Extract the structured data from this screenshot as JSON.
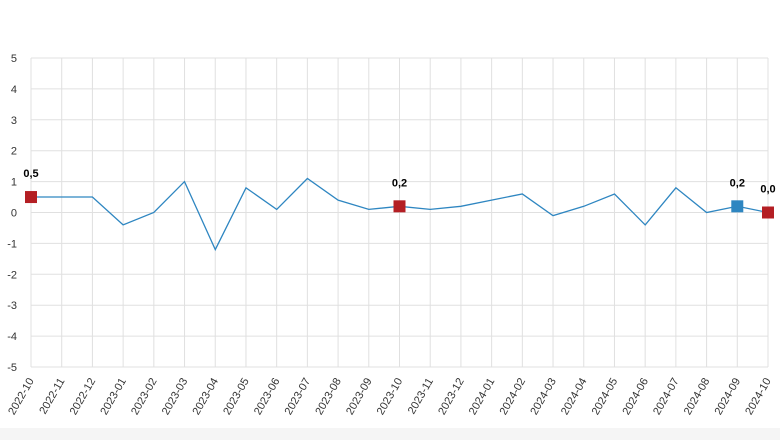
{
  "chart_data": {
    "type": "line",
    "title": "",
    "xlabel": "",
    "ylabel": "",
    "ylim": [
      -5,
      5
    ],
    "yticks": [
      5,
      4,
      3,
      2,
      1,
      0,
      -1,
      -2,
      -3,
      -4,
      -5
    ],
    "grid": true,
    "categories": [
      "2022-10",
      "2022-11",
      "2022-12",
      "2023-01",
      "2023-02",
      "2023-03",
      "2023-04",
      "2023-05",
      "2023-06",
      "2023-07",
      "2023-08",
      "2023-09",
      "2023-10",
      "2023-11",
      "2023-12",
      "2024-01",
      "2024-02",
      "2024-03",
      "2024-04",
      "2024-05",
      "2024-06",
      "2024-07",
      "2024-08",
      "2024-09",
      "2024-10"
    ],
    "series": [
      {
        "values": [
          0.5,
          0.5,
          0.5,
          -0.4,
          0.0,
          1.0,
          -1.2,
          0.8,
          0.1,
          1.1,
          0.4,
          0.1,
          0.2,
          0.1,
          0.2,
          0.4,
          0.6,
          -0.1,
          0.2,
          0.6,
          -0.4,
          0.8,
          0.0,
          0.2,
          0.0
        ],
        "color": "#2e86c1"
      }
    ],
    "markers": [
      {
        "index": 0,
        "label": "0,5",
        "color": "#b41f24"
      },
      {
        "index": 12,
        "label": "0,2",
        "color": "#b41f24"
      },
      {
        "index": 23,
        "label": "0,2",
        "color": "#2e86c1"
      },
      {
        "index": 24,
        "label": "0,0",
        "color": "#b41f24"
      }
    ]
  }
}
